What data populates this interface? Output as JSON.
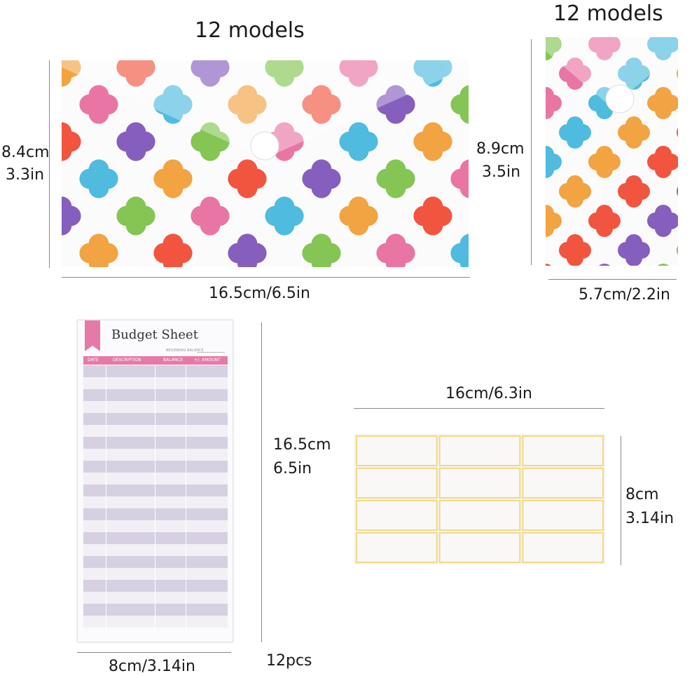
{
  "envelope_large": {
    "title": "12 models",
    "height_cm": "8.4cm",
    "height_in": "3.3in",
    "width_label": "16.5cm/6.5in"
  },
  "envelope_small": {
    "title": "12 models",
    "height_cm": "8.9cm",
    "height_in": "3.5in",
    "width_label": "5.7cm/2.2in"
  },
  "budget_sheet": {
    "title": "Budget Sheet",
    "beginning_balance": "BEGINNING BALANCE",
    "columns": [
      "DATE",
      "DESCRIPTION",
      "BALANCE",
      "+/- AMOUNT"
    ],
    "height_cm": "16.5cm",
    "height_in": "6.5in",
    "width_label": "8cm/3.14in",
    "count_label": "12pcs"
  },
  "stickers": {
    "width_label": "16cm/6.3in",
    "height_cm": "8cm",
    "height_in": "3.14in"
  },
  "colors": {
    "pink": "#e8679c",
    "blue": "#3db5dc",
    "orange": "#f29a2e",
    "red": "#f0442c",
    "purple": "#7a4fb8",
    "green": "#78c043",
    "sheet_accent": "#e57aa8"
  }
}
